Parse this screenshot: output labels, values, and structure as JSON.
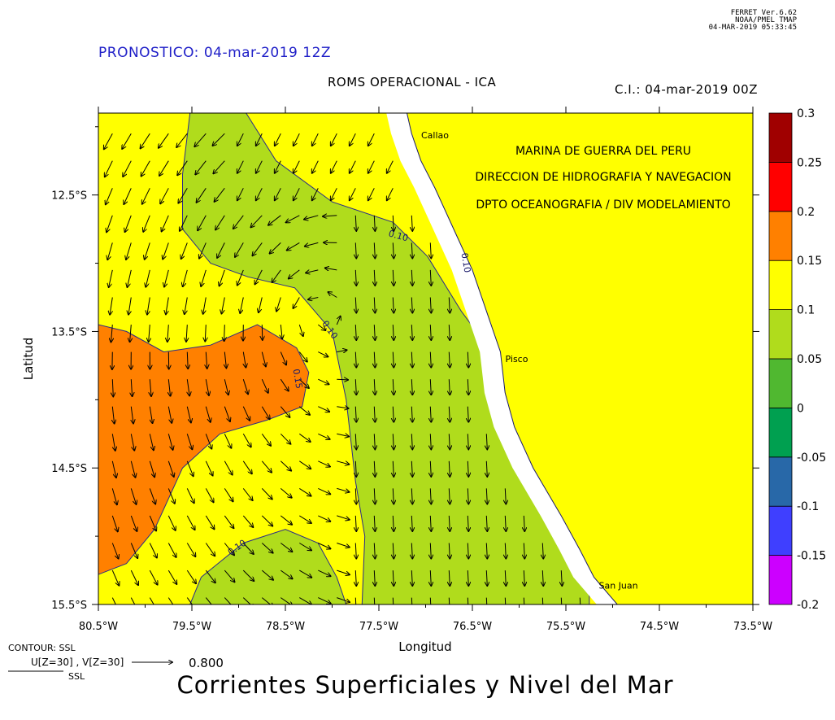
{
  "header": {
    "ferret_lines": [
      "FERRET  Ver.6.62",
      "NOAA/PMEL TMAP",
      "04-MAR-2019 05:33:45"
    ],
    "forecast": "PRONOSTICO: 04-mar-2019 12Z",
    "subtitle": "ROMS OPERACIONAL - ICA",
    "initial_condition": "C.I.: 04-mar-2019 00Z"
  },
  "institution": [
    "MARINA DE GUERRA DEL PERU",
    "DIRECCION DE HIDROGRAFIA Y NAVEGACION",
    "DPTO OCEANOGRAFIA / DIV MODELAMIENTO"
  ],
  "places": [
    {
      "name": "Callao",
      "lon": -77.1,
      "lat": -12.06
    },
    {
      "name": "Pisco",
      "lon": -76.2,
      "lat": -13.7
    },
    {
      "name": "San Juan",
      "lon": -75.2,
      "lat": -15.36
    }
  ],
  "contour_labels": [
    {
      "text": "0.10",
      "lon": -77.3,
      "lat": -12.82,
      "rot": 15
    },
    {
      "text": "0.10",
      "lon": -76.6,
      "lat": -13.0,
      "rot": 80
    },
    {
      "text": "0.10",
      "lon": -78.05,
      "lat": -13.5,
      "rot": 55
    },
    {
      "text": "0.15",
      "lon": -78.4,
      "lat": -13.85,
      "rot": 80
    },
    {
      "text": "0.10",
      "lon": -79.0,
      "lat": -15.1,
      "rot": -35
    }
  ],
  "chart_data": {
    "type": "heatmap",
    "title": "Corrientes Superficiales y Nivel del Mar",
    "xlabel": "Longitud",
    "ylabel": "Latitud",
    "xlim": [
      -80.5,
      -73.5
    ],
    "ylim": [
      -15.5,
      -11.9
    ],
    "x_ticks": [
      -80.5,
      -79.5,
      -78.5,
      -77.5,
      -76.5,
      -75.5,
      -74.5,
      -73.5
    ],
    "x_tick_labels": [
      "80.5°W",
      "79.5°W",
      "78.5°W",
      "77.5°W",
      "76.5°W",
      "75.5°W",
      "74.5°W",
      "73.5°W"
    ],
    "y_ticks": [
      -12.5,
      -13.5,
      -14.5,
      -15.5
    ],
    "y_tick_labels": [
      "12.5°S",
      "13.5°S",
      "14.5°S",
      "15.5°S"
    ],
    "colorbar": {
      "levels": [
        -0.2,
        -0.15,
        -0.1,
        -0.05,
        0,
        0.05,
        0.1,
        0.15,
        0.2,
        0.25,
        0.3
      ],
      "labels": [
        "-0.2",
        "-0.15",
        "-0.1",
        "-0.05",
        "0",
        "0.05",
        "0.1",
        "0.15",
        "0.2",
        "0.25",
        "0.3"
      ],
      "colors": [
        "#cc00ff",
        "#3f3fff",
        "#2868a8",
        "#00a050",
        "#50b830",
        "#b0dc1c",
        "#ffff00",
        "#ff8000",
        "#ff0000",
        "#a00000"
      ]
    },
    "regions": [
      {
        "level": "0.05-0.1",
        "color": "#b0dc1c",
        "points": [
          [
            -79.52,
            -11.9
          ],
          [
            -78.92,
            -11.9
          ],
          [
            -78.6,
            -12.25
          ],
          [
            -78.0,
            -12.55
          ],
          [
            -77.35,
            -12.7
          ],
          [
            -76.98,
            -12.95
          ],
          [
            -76.62,
            -13.35
          ],
          [
            -76.48,
            -13.48
          ],
          [
            -76.3,
            -13.5
          ],
          [
            -76.2,
            -13.85
          ],
          [
            -75.95,
            -14.35
          ],
          [
            -75.55,
            -14.85
          ],
          [
            -75.25,
            -15.3
          ],
          [
            -75.25,
            -15.5
          ],
          [
            -77.68,
            -15.5
          ],
          [
            -77.65,
            -15.0
          ],
          [
            -77.75,
            -14.6
          ],
          [
            -77.85,
            -14.0
          ],
          [
            -78.0,
            -13.5
          ],
          [
            -78.4,
            -13.18
          ],
          [
            -78.9,
            -13.1
          ],
          [
            -79.3,
            -13.0
          ],
          [
            -79.6,
            -12.75
          ],
          [
            -79.6,
            -12.35
          ]
        ]
      },
      {
        "level": "0.05-0.1",
        "color": "#b0dc1c",
        "points": [
          [
            -79.52,
            -15.5
          ],
          [
            -79.4,
            -15.3
          ],
          [
            -78.95,
            -15.05
          ],
          [
            -78.5,
            -14.95
          ],
          [
            -78.15,
            -15.05
          ],
          [
            -77.95,
            -15.3
          ],
          [
            -77.85,
            -15.5
          ]
        ]
      },
      {
        "level": "0.15-0.2",
        "color": "#ff8000",
        "points": [
          [
            -80.5,
            -13.45
          ],
          [
            -80.2,
            -13.5
          ],
          [
            -79.8,
            -13.65
          ],
          [
            -79.3,
            -13.6
          ],
          [
            -78.8,
            -13.45
          ],
          [
            -78.38,
            -13.62
          ],
          [
            -78.25,
            -13.8
          ],
          [
            -78.32,
            -14.05
          ],
          [
            -78.7,
            -14.15
          ],
          [
            -79.2,
            -14.25
          ],
          [
            -79.6,
            -14.5
          ],
          [
            -79.9,
            -14.95
          ],
          [
            -80.2,
            -15.2
          ],
          [
            -80.5,
            -15.28
          ]
        ]
      },
      {
        "level": "0.05-0.1",
        "color": "#b0dc1c",
        "points": [
          [
            -76.75,
            -12.78
          ],
          [
            -76.6,
            -13.0
          ],
          [
            -76.5,
            -13.25
          ],
          [
            -76.48,
            -13.45
          ],
          [
            -76.4,
            -13.5
          ],
          [
            -76.55,
            -13.25
          ],
          [
            -76.65,
            -13.0
          ]
        ]
      }
    ],
    "coast": [
      [
        -77.2,
        -11.9
      ],
      [
        -77.15,
        -12.05
      ],
      [
        -77.05,
        -12.25
      ],
      [
        -76.9,
        -12.45
      ],
      [
        -76.7,
        -12.75
      ],
      [
        -76.5,
        -13.05
      ],
      [
        -76.35,
        -13.35
      ],
      [
        -76.2,
        -13.65
      ],
      [
        -76.15,
        -13.95
      ],
      [
        -76.05,
        -14.2
      ],
      [
        -75.85,
        -14.5
      ],
      [
        -75.55,
        -14.85
      ],
      [
        -75.35,
        -15.1
      ],
      [
        -75.2,
        -15.3
      ],
      [
        -74.95,
        -15.5
      ]
    ],
    "contour_interval": 0.05,
    "vector_reference": {
      "label": "U[Z=30] , V[Z=30]",
      "magnitude": 0.8
    },
    "contour_key": {
      "label": "CONTOUR: SSL",
      "line_label": "SSL"
    }
  }
}
